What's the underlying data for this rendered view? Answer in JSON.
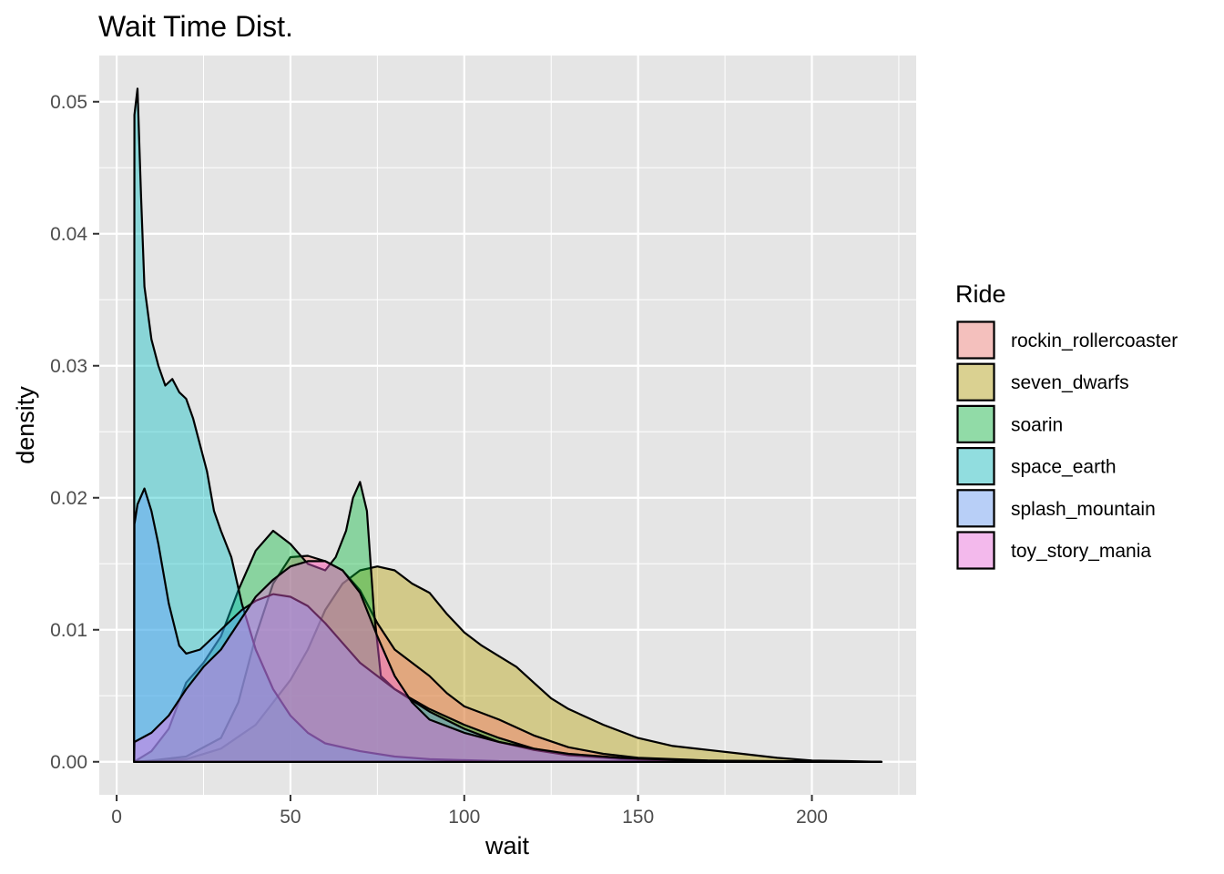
{
  "chart_data": {
    "type": "area",
    "subtype": "density",
    "title": "Wait Time Dist.",
    "xlabel": "wait",
    "ylabel": "density",
    "xlim": [
      -5,
      230
    ],
    "ylim": [
      -0.0025,
      0.0535
    ],
    "x_ticks": [
      0,
      50,
      100,
      150,
      200
    ],
    "x_tick_labels": [
      "0",
      "50",
      "100",
      "150",
      "200"
    ],
    "y_ticks": [
      0,
      0.01,
      0.02,
      0.03,
      0.04,
      0.05
    ],
    "y_tick_labels": [
      "0.00",
      "0.01",
      "0.02",
      "0.03",
      "0.04",
      "0.05"
    ],
    "grid": true,
    "panel_background": "#e5e5e5",
    "grid_color": "#ffffff",
    "outline_color": "#000000",
    "fill_opacity": 0.4,
    "legend": {
      "title": "Ride",
      "position": "right"
    },
    "series": [
      {
        "name": "seven_dwarfs",
        "color": "#B79F00",
        "points": [
          [
            5,
            0
          ],
          [
            20,
            0.0002
          ],
          [
            30,
            0.001
          ],
          [
            40,
            0.0028
          ],
          [
            45,
            0.0045
          ],
          [
            50,
            0.0062
          ],
          [
            55,
            0.0085
          ],
          [
            60,
            0.0115
          ],
          [
            65,
            0.0135
          ],
          [
            70,
            0.0145
          ],
          [
            75,
            0.0148
          ],
          [
            80,
            0.0145
          ],
          [
            85,
            0.0135
          ],
          [
            90,
            0.0128
          ],
          [
            95,
            0.0112
          ],
          [
            100,
            0.0098
          ],
          [
            105,
            0.0088
          ],
          [
            110,
            0.008
          ],
          [
            115,
            0.0072
          ],
          [
            120,
            0.006
          ],
          [
            125,
            0.0048
          ],
          [
            130,
            0.004
          ],
          [
            140,
            0.0028
          ],
          [
            150,
            0.0018
          ],
          [
            160,
            0.0012
          ],
          [
            170,
            0.0009
          ],
          [
            180,
            0.0006
          ],
          [
            190,
            0.0003
          ],
          [
            200,
            0.0001
          ],
          [
            210,
            5e-05
          ],
          [
            220,
            0
          ]
        ]
      },
      {
        "name": "rockin_rollercoaster",
        "color": "#F8766D",
        "points": [
          [
            5,
            0
          ],
          [
            10,
            0.0001
          ],
          [
            20,
            0.0004
          ],
          [
            30,
            0.0018
          ],
          [
            35,
            0.0045
          ],
          [
            40,
            0.0095
          ],
          [
            45,
            0.0135
          ],
          [
            50,
            0.0155
          ],
          [
            55,
            0.0156
          ],
          [
            60,
            0.0152
          ],
          [
            65,
            0.0145
          ],
          [
            70,
            0.013
          ],
          [
            75,
            0.0105
          ],
          [
            80,
            0.0085
          ],
          [
            85,
            0.0075
          ],
          [
            90,
            0.0065
          ],
          [
            95,
            0.0052
          ],
          [
            100,
            0.0042
          ],
          [
            110,
            0.0032
          ],
          [
            120,
            0.002
          ],
          [
            130,
            0.0011
          ],
          [
            140,
            0.0006
          ],
          [
            150,
            0.0003
          ],
          [
            170,
            0.0001
          ],
          [
            190,
            3e-05
          ],
          [
            220,
            0
          ]
        ]
      },
      {
        "name": "soarin",
        "color": "#00BA38",
        "points": [
          [
            5,
            0
          ],
          [
            10,
            0.0008
          ],
          [
            15,
            0.0025
          ],
          [
            20,
            0.006
          ],
          [
            25,
            0.0075
          ],
          [
            30,
            0.0095
          ],
          [
            35,
            0.013
          ],
          [
            40,
            0.016
          ],
          [
            45,
            0.0175
          ],
          [
            50,
            0.0165
          ],
          [
            55,
            0.015
          ],
          [
            60,
            0.0145
          ],
          [
            63,
            0.0155
          ],
          [
            66,
            0.0175
          ],
          [
            68,
            0.02
          ],
          [
            70,
            0.0212
          ],
          [
            72,
            0.019
          ],
          [
            74,
            0.0115
          ],
          [
            76,
            0.0065
          ],
          [
            80,
            0.0055
          ],
          [
            90,
            0.004
          ],
          [
            100,
            0.0028
          ],
          [
            110,
            0.0018
          ],
          [
            120,
            0.001
          ],
          [
            130,
            0.0005
          ],
          [
            145,
            0.0002
          ],
          [
            165,
            5e-05
          ],
          [
            220,
            0
          ]
        ]
      },
      {
        "name": "space_earth",
        "color": "#00BFC4",
        "points": [
          [
            5,
            0
          ],
          [
            5.1,
            0.049
          ],
          [
            6,
            0.051
          ],
          [
            7,
            0.043
          ],
          [
            8,
            0.036
          ],
          [
            10,
            0.032
          ],
          [
            12,
            0.03
          ],
          [
            14,
            0.0285
          ],
          [
            16,
            0.029
          ],
          [
            18,
            0.028
          ],
          [
            20,
            0.0275
          ],
          [
            22,
            0.026
          ],
          [
            24,
            0.024
          ],
          [
            26,
            0.022
          ],
          [
            28,
            0.019
          ],
          [
            30,
            0.0175
          ],
          [
            33,
            0.0155
          ],
          [
            36,
            0.012
          ],
          [
            40,
            0.0085
          ],
          [
            45,
            0.0055
          ],
          [
            50,
            0.0035
          ],
          [
            55,
            0.0022
          ],
          [
            60,
            0.0014
          ],
          [
            70,
            0.0008
          ],
          [
            80,
            0.0004
          ],
          [
            90,
            0.0002
          ],
          [
            110,
            5e-05
          ],
          [
            220,
            0
          ]
        ]
      },
      {
        "name": "splash_mountain",
        "color": "#619CFF",
        "points": [
          [
            5,
            0
          ],
          [
            5.1,
            0.018
          ],
          [
            6,
            0.0195
          ],
          [
            8,
            0.0207
          ],
          [
            10,
            0.019
          ],
          [
            12,
            0.0165
          ],
          [
            15,
            0.012
          ],
          [
            18,
            0.0088
          ],
          [
            20,
            0.0082
          ],
          [
            24,
            0.0085
          ],
          [
            28,
            0.0095
          ],
          [
            32,
            0.0105
          ],
          [
            36,
            0.0115
          ],
          [
            40,
            0.0122
          ],
          [
            45,
            0.0127
          ],
          [
            50,
            0.0125
          ],
          [
            55,
            0.0118
          ],
          [
            60,
            0.0105
          ],
          [
            65,
            0.009
          ],
          [
            70,
            0.0075
          ],
          [
            80,
            0.0055
          ],
          [
            90,
            0.0038
          ],
          [
            100,
            0.0025
          ],
          [
            110,
            0.0015
          ],
          [
            120,
            0.0009
          ],
          [
            130,
            0.0005
          ],
          [
            150,
            0.0002
          ],
          [
            170,
            5e-05
          ],
          [
            220,
            0
          ]
        ]
      },
      {
        "name": "toy_story_mania",
        "color": "#F564E3",
        "points": [
          [
            5,
            0
          ],
          [
            5.1,
            0.0015
          ],
          [
            10,
            0.0022
          ],
          [
            15,
            0.0035
          ],
          [
            20,
            0.0055
          ],
          [
            25,
            0.0072
          ],
          [
            30,
            0.0085
          ],
          [
            35,
            0.0105
          ],
          [
            40,
            0.0125
          ],
          [
            45,
            0.0138
          ],
          [
            50,
            0.0148
          ],
          [
            55,
            0.0152
          ],
          [
            60,
            0.0152
          ],
          [
            65,
            0.0145
          ],
          [
            70,
            0.0128
          ],
          [
            75,
            0.0095
          ],
          [
            80,
            0.0065
          ],
          [
            85,
            0.0045
          ],
          [
            90,
            0.0032
          ],
          [
            100,
            0.0022
          ],
          [
            110,
            0.0015
          ],
          [
            120,
            0.001
          ],
          [
            130,
            0.0006
          ],
          [
            145,
            0.0003
          ],
          [
            165,
            0.0001
          ],
          [
            220,
            0
          ]
        ]
      }
    ]
  }
}
